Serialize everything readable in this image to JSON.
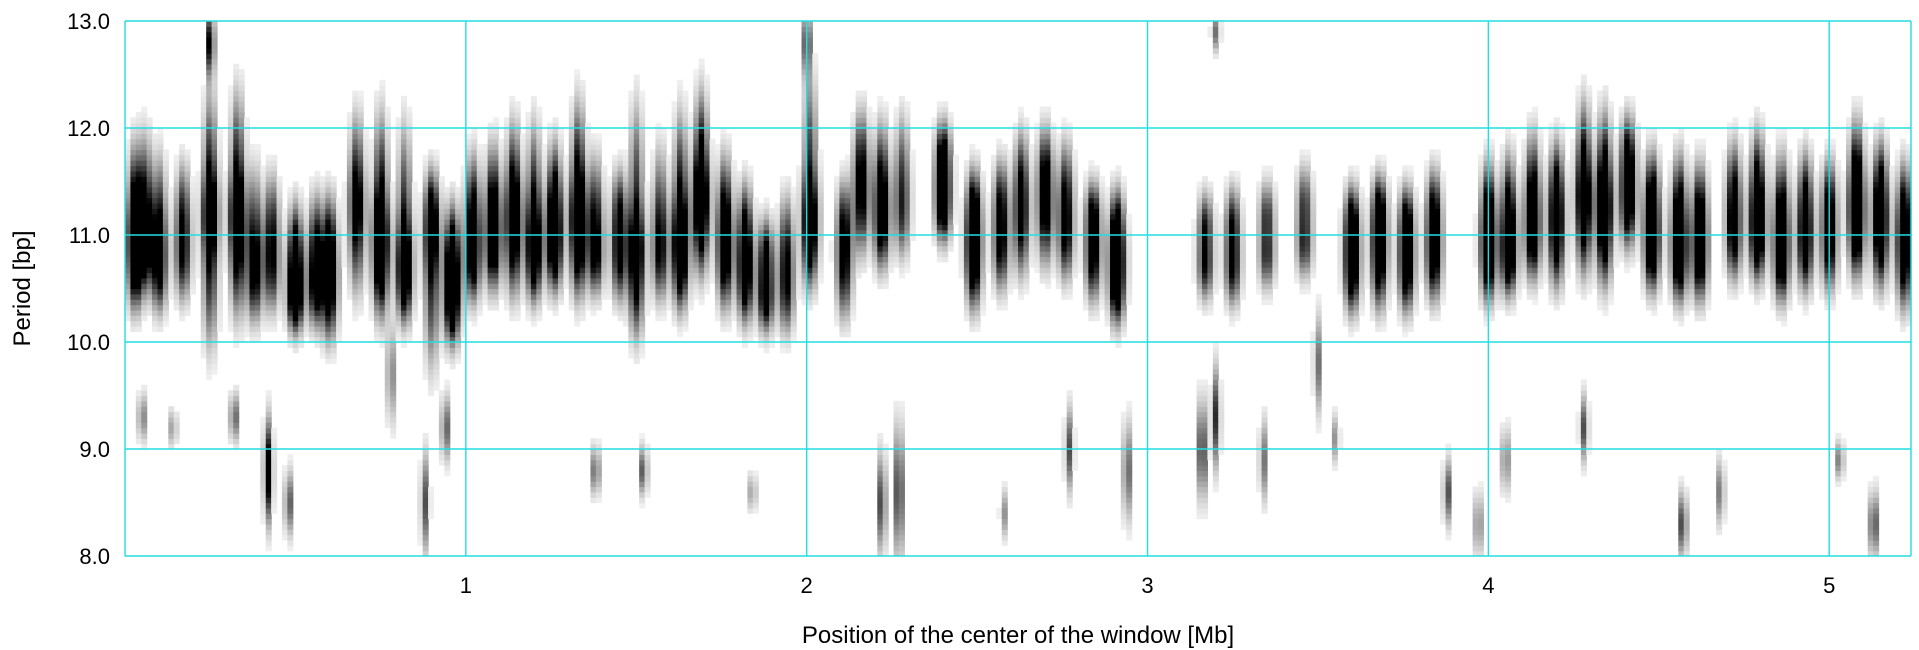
{
  "chart_data": {
    "type": "heatmap",
    "title": "",
    "xlabel": "Position of the center of the window [Mb]",
    "ylabel": "Period [bp]",
    "xlim": [
      0,
      5.24
    ],
    "ylim": [
      8.0,
      13.0
    ],
    "x_ticks": [
      {
        "value": 1,
        "label": "1"
      },
      {
        "value": 2,
        "label": "2"
      },
      {
        "value": 3,
        "label": "3"
      },
      {
        "value": 4,
        "label": "4"
      },
      {
        "value": 5,
        "label": "5"
      }
    ],
    "y_ticks": [
      {
        "value": 8.0,
        "label": "8.0"
      },
      {
        "value": 9.0,
        "label": "9.0"
      },
      {
        "value": 10.0,
        "label": "10.0"
      },
      {
        "value": 11.0,
        "label": "11.0"
      },
      {
        "value": 12.0,
        "label": "12.0"
      },
      {
        "value": 13.0,
        "label": "13.0"
      }
    ],
    "grid": true,
    "grid_color": "#22dde2",
    "colormap": "white-to-black (higher intensity = darker)",
    "bands": [
      [
        0.03,
        11.0,
        10.1,
        12.1,
        0.85
      ],
      [
        0.06,
        11.1,
        10.3,
        12.2,
        0.6
      ],
      [
        0.1,
        10.9,
        10.1,
        12.0,
        0.6
      ],
      [
        0.17,
        11.0,
        10.2,
        11.9,
        0.5
      ],
      [
        0.25,
        11.2,
        9.7,
        12.6,
        0.8
      ],
      [
        0.33,
        11.2,
        10.0,
        12.6,
        0.85
      ],
      [
        0.38,
        10.8,
        10.0,
        11.9,
        0.55
      ],
      [
        0.43,
        10.9,
        10.1,
        11.8,
        0.5
      ],
      [
        0.5,
        10.6,
        10.0,
        11.5,
        0.8
      ],
      [
        0.56,
        10.7,
        10.0,
        11.6,
        0.6
      ],
      [
        0.6,
        10.7,
        9.8,
        11.6,
        0.7
      ],
      [
        0.68,
        11.3,
        10.2,
        12.4,
        0.6
      ],
      [
        0.75,
        11.0,
        10.0,
        12.4,
        0.9
      ],
      [
        0.82,
        10.8,
        10.0,
        12.3,
        0.75
      ],
      [
        0.9,
        11.0,
        9.5,
        11.8,
        0.7
      ],
      [
        0.96,
        10.6,
        9.8,
        11.5,
        0.85
      ],
      [
        1.02,
        11.0,
        10.2,
        12.0,
        0.7
      ],
      [
        1.08,
        11.1,
        10.3,
        12.1,
        0.7
      ],
      [
        1.14,
        11.2,
        10.2,
        12.3,
        0.75
      ],
      [
        1.2,
        11.0,
        10.2,
        12.3,
        0.75
      ],
      [
        1.26,
        11.1,
        10.3,
        12.1,
        0.8
      ],
      [
        1.33,
        11.2,
        10.2,
        12.5,
        0.9
      ],
      [
        1.38,
        11.0,
        10.3,
        12.0,
        0.55
      ],
      [
        1.45,
        11.0,
        10.2,
        11.8,
        0.55
      ],
      [
        1.5,
        10.9,
        9.8,
        12.5,
        0.75
      ],
      [
        1.57,
        11.0,
        10.2,
        12.1,
        0.5
      ],
      [
        1.63,
        11.0,
        10.1,
        12.4,
        0.85
      ],
      [
        1.69,
        11.4,
        10.4,
        12.6,
        0.85
      ],
      [
        1.76,
        11.0,
        10.1,
        12.0,
        0.7
      ],
      [
        1.82,
        10.8,
        10.0,
        11.7,
        0.7
      ],
      [
        1.88,
        10.6,
        10.0,
        11.3,
        0.6
      ],
      [
        1.94,
        10.7,
        9.9,
        11.6,
        0.5
      ],
      [
        2.01,
        11.2,
        10.3,
        12.8,
        0.75
      ],
      [
        2.11,
        10.9,
        10.0,
        11.7,
        0.55
      ],
      [
        2.16,
        11.5,
        10.6,
        12.4,
        0.55
      ],
      [
        2.22,
        11.3,
        10.5,
        12.3,
        0.65
      ],
      [
        2.28,
        11.4,
        10.6,
        12.4,
        0.4
      ],
      [
        2.4,
        11.5,
        10.8,
        12.2,
        0.75
      ],
      [
        2.49,
        11.0,
        10.1,
        11.8,
        0.8
      ],
      [
        2.57,
        11.1,
        10.3,
        11.9,
        0.55
      ],
      [
        2.63,
        11.3,
        10.4,
        12.2,
        0.55
      ],
      [
        2.7,
        11.4,
        10.5,
        12.2,
        0.6
      ],
      [
        2.76,
        11.2,
        10.4,
        12.1,
        0.55
      ],
      [
        2.84,
        11.0,
        10.2,
        11.6,
        0.6
      ],
      [
        2.91,
        10.8,
        10.0,
        11.6,
        0.85
      ],
      [
        3.17,
        10.9,
        10.3,
        11.5,
        0.45
      ],
      [
        3.25,
        10.9,
        10.2,
        11.6,
        0.5
      ],
      [
        3.35,
        11.0,
        10.4,
        11.6,
        0.4
      ],
      [
        3.46,
        11.1,
        10.5,
        11.8,
        0.4
      ],
      [
        3.6,
        10.9,
        10.1,
        11.6,
        0.75
      ],
      [
        3.68,
        11.0,
        10.1,
        11.7,
        0.75
      ],
      [
        3.76,
        10.9,
        10.1,
        11.6,
        0.7
      ],
      [
        3.84,
        11.0,
        10.2,
        11.8,
        0.65
      ],
      [
        4.0,
        11.0,
        10.2,
        11.9,
        0.75
      ],
      [
        4.06,
        11.0,
        10.3,
        12.0,
        0.75
      ],
      [
        4.13,
        11.2,
        10.4,
        12.2,
        0.7
      ],
      [
        4.2,
        11.2,
        10.3,
        12.1,
        0.7
      ],
      [
        4.28,
        11.4,
        10.4,
        12.5,
        0.75
      ],
      [
        4.34,
        11.3,
        10.3,
        12.4,
        0.85
      ],
      [
        4.41,
        11.5,
        10.7,
        12.3,
        0.7
      ],
      [
        4.48,
        11.1,
        10.3,
        12.0,
        0.8
      ],
      [
        4.56,
        11.0,
        10.2,
        12.0,
        0.8
      ],
      [
        4.62,
        11.0,
        10.2,
        11.9,
        0.7
      ],
      [
        4.72,
        11.2,
        10.4,
        12.1,
        0.6
      ],
      [
        4.79,
        11.2,
        10.4,
        12.2,
        0.8
      ],
      [
        4.86,
        11.0,
        10.2,
        12.0,
        0.75
      ],
      [
        4.93,
        11.1,
        10.3,
        12.0,
        0.65
      ],
      [
        5.0,
        11.1,
        10.3,
        11.9,
        0.6
      ],
      [
        5.08,
        11.3,
        10.4,
        12.3,
        0.85
      ],
      [
        5.15,
        11.2,
        10.3,
        12.1,
        0.75
      ],
      [
        5.22,
        11.0,
        10.1,
        11.9,
        0.7
      ]
    ],
    "specks": [
      [
        0.05,
        9.3,
        0.15,
        0.4
      ],
      [
        0.14,
        9.2,
        0.12,
        0.3
      ],
      [
        0.32,
        9.3,
        0.15,
        0.5
      ],
      [
        0.42,
        8.8,
        0.3,
        0.9
      ],
      [
        0.48,
        8.5,
        0.2,
        0.5
      ],
      [
        0.88,
        8.5,
        0.3,
        0.5
      ],
      [
        0.94,
        9.2,
        0.2,
        0.5
      ],
      [
        0.78,
        9.7,
        0.3,
        0.4
      ],
      [
        1.38,
        8.8,
        0.15,
        0.5
      ],
      [
        1.52,
        8.8,
        0.15,
        0.5
      ],
      [
        1.84,
        8.6,
        0.12,
        0.3
      ],
      [
        2.22,
        8.5,
        0.3,
        0.6
      ],
      [
        2.27,
        8.6,
        0.4,
        0.7
      ],
      [
        2.58,
        8.4,
        0.15,
        0.3
      ],
      [
        2.77,
        9.0,
        0.25,
        0.5
      ],
      [
        2.94,
        8.8,
        0.3,
        0.5
      ],
      [
        3.16,
        9.0,
        0.3,
        0.7
      ],
      [
        3.2,
        9.3,
        0.3,
        0.6
      ],
      [
        3.34,
        8.9,
        0.25,
        0.4
      ],
      [
        3.5,
        9.8,
        0.3,
        0.4
      ],
      [
        3.55,
        9.1,
        0.15,
        0.3
      ],
      [
        3.88,
        8.6,
        0.2,
        0.5
      ],
      [
        3.97,
        8.3,
        0.2,
        0.4
      ],
      [
        4.05,
        8.9,
        0.2,
        0.4
      ],
      [
        4.28,
        9.2,
        0.2,
        0.5
      ],
      [
        4.57,
        8.3,
        0.2,
        0.6
      ],
      [
        4.68,
        8.6,
        0.2,
        0.4
      ],
      [
        5.13,
        8.3,
        0.2,
        0.6
      ],
      [
        5.03,
        8.9,
        0.12,
        0.4
      ],
      [
        3.2,
        12.9,
        0.12,
        0.4
      ],
      [
        0.25,
        12.8,
        0.2,
        0.8
      ],
      [
        2.0,
        12.8,
        0.2,
        0.6
      ]
    ]
  }
}
